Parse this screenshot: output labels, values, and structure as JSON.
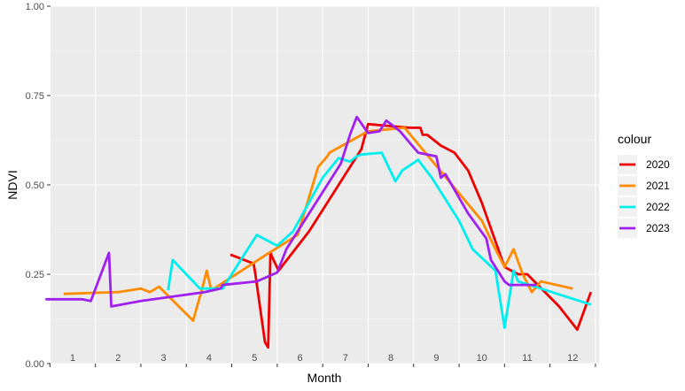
{
  "chart_data": {
    "type": "line",
    "xlabel": "Month",
    "ylabel": "NDVI",
    "xlim": [
      0,
      12.4
    ],
    "ylim": [
      0,
      1
    ],
    "y_ticks": [
      "0.00",
      "0.25",
      "0.50",
      "0.75",
      "1.00"
    ],
    "y_tick_values": [
      0,
      0.25,
      0.5,
      0.75,
      1.0
    ],
    "x_tick_labels": [
      "1",
      "2",
      "3",
      "4",
      "5",
      "6",
      "7",
      "8",
      "9",
      "10",
      "11",
      "12"
    ],
    "grid": true,
    "legend": {
      "title": "colour",
      "position": "right"
    },
    "series": [
      {
        "name": "2020",
        "color": "#ee0000",
        "x": [
          3.97,
          4.48,
          4.52,
          4.73,
          4.8,
          4.85,
          4.9,
          5.03,
          5.7,
          6.85,
          7.0,
          7.9,
          8.15,
          8.2,
          8.3,
          8.6,
          8.9,
          9.2,
          9.5,
          10.0,
          10.3,
          10.5,
          11.2,
          11.6,
          11.9
        ],
        "y": [
          0.305,
          0.28,
          0.25,
          0.06,
          0.045,
          0.31,
          0.295,
          0.26,
          0.37,
          0.6,
          0.67,
          0.66,
          0.66,
          0.64,
          0.64,
          0.61,
          0.59,
          0.54,
          0.45,
          0.27,
          0.25,
          0.25,
          0.16,
          0.095,
          0.2
        ]
      },
      {
        "name": "2021",
        "color": "#ff8c00",
        "x": [
          0.3,
          1.5,
          2.0,
          2.2,
          2.4,
          3.15,
          3.35,
          3.45,
          3.55,
          4.7,
          5.45,
          5.9,
          6.1,
          6.15,
          7.0,
          7.8,
          9.5,
          9.8,
          10.0,
          10.2,
          10.4,
          10.6,
          10.8,
          11.5
        ],
        "y": [
          0.195,
          0.2,
          0.21,
          0.2,
          0.215,
          0.12,
          0.21,
          0.26,
          0.205,
          0.3,
          0.36,
          0.55,
          0.58,
          0.59,
          0.65,
          0.66,
          0.4,
          0.32,
          0.27,
          0.32,
          0.25,
          0.2,
          0.23,
          0.21
        ]
      },
      {
        "name": "2022",
        "color": "#00eeee",
        "x": [
          2.6,
          2.7,
          3.0,
          3.3,
          3.8,
          4.2,
          4.55,
          5.0,
          5.35,
          6.0,
          6.35,
          6.6,
          6.75,
          6.85,
          7.3,
          7.6,
          7.75,
          8.1,
          8.4,
          9.0,
          9.3,
          9.8,
          10.0,
          10.2,
          10.3,
          10.8,
          11.9
        ],
        "y": [
          0.205,
          0.29,
          0.25,
          0.21,
          0.21,
          0.29,
          0.36,
          0.33,
          0.37,
          0.52,
          0.575,
          0.565,
          0.58,
          0.585,
          0.59,
          0.51,
          0.54,
          0.57,
          0.52,
          0.4,
          0.32,
          0.26,
          0.1,
          0.26,
          0.23,
          0.21,
          0.165
        ]
      },
      {
        "name": "2023",
        "color": "#a020f0",
        "x": [
          -0.1,
          0.7,
          0.9,
          1.3,
          1.35,
          2.0,
          3.4,
          3.75,
          3.8,
          4.55,
          5.0,
          5.2,
          6.4,
          6.6,
          6.75,
          7.0,
          7.25,
          7.4,
          7.7,
          7.9,
          8.1,
          8.5,
          8.6,
          8.7,
          9.2,
          9.6,
          9.7,
          10.0,
          10.1,
          10.7
        ],
        "y": [
          0.18,
          0.18,
          0.175,
          0.31,
          0.16,
          0.175,
          0.2,
          0.21,
          0.22,
          0.23,
          0.255,
          0.32,
          0.56,
          0.64,
          0.69,
          0.645,
          0.65,
          0.68,
          0.65,
          0.62,
          0.59,
          0.58,
          0.52,
          0.53,
          0.42,
          0.35,
          0.29,
          0.23,
          0.22,
          0.22
        ]
      }
    ]
  }
}
